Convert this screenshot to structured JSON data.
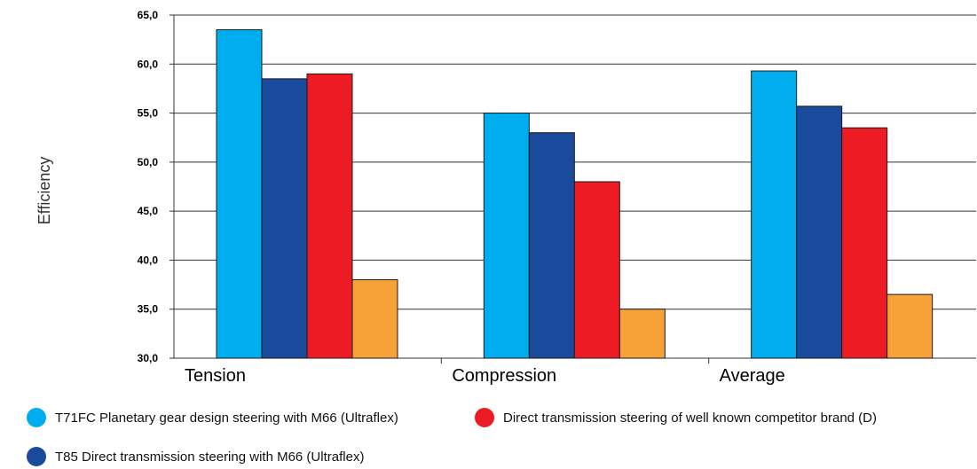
{
  "chart_data": {
    "type": "bar",
    "ylabel": "Efficiency",
    "ylim": [
      30,
      65
    ],
    "yticks": [
      "30,0",
      "35,0",
      "40,0",
      "45,0",
      "50,0",
      "55,0",
      "60,0",
      "65,0"
    ],
    "ytick_values": [
      30,
      35,
      40,
      45,
      50,
      55,
      60,
      65
    ],
    "grid": true,
    "legend_position": "bottom",
    "categories": [
      "Tension",
      "Compression",
      "Average"
    ],
    "series": [
      {
        "name": "T71FC  Planetary gear design steering with M66 (Ultraflex)",
        "color": "#00aeef",
        "values": [
          63.5,
          55.0,
          59.3
        ]
      },
      {
        "name": "T85 Direct transmission steering with M66 (Ultraflex)",
        "color": "#1a4a9c",
        "values": [
          58.5,
          53.0,
          55.7
        ]
      },
      {
        "name": "Direct transmission steering of well known competitor brand (D)",
        "color": "#ed1c24",
        "values": [
          59.0,
          48.0,
          53.5
        ]
      },
      {
        "color": "#f7a139",
        "values": [
          38.0,
          35.0,
          36.5
        ]
      }
    ]
  }
}
